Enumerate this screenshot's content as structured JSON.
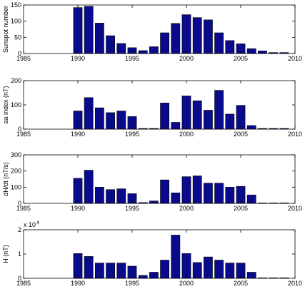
{
  "style": {
    "bar_color": "#0a0a8c",
    "bar_edge": "#000000",
    "axis_color": "#000000",
    "background": "#ffffff"
  },
  "chart_data": [
    {
      "type": "bar",
      "ylabel": "Sunspot number",
      "xlim": [
        1985,
        2010
      ],
      "ylim": [
        0,
        150
      ],
      "xticks": [
        1985,
        1990,
        1995,
        2000,
        2005,
        2010
      ],
      "yticks": [
        0,
        50,
        100,
        150
      ],
      "exponent": "",
      "categories": [
        1990,
        1991,
        1992,
        1993,
        1994,
        1995,
        1996,
        1997,
        1998,
        1999,
        2000,
        2001,
        2002,
        2003,
        2004,
        2005,
        2006,
        2007,
        2008,
        2009
      ],
      "values": [
        142,
        146,
        94,
        55,
        31,
        18,
        9,
        21,
        64,
        93,
        120,
        111,
        104,
        64,
        40,
        30,
        15,
        8,
        3,
        3
      ]
    },
    {
      "type": "bar",
      "ylabel": "aa index (nT)",
      "xlim": [
        1985,
        2010
      ],
      "ylim": [
        0,
        200
      ],
      "xticks": [
        1985,
        1990,
        1995,
        2000,
        2005,
        2010
      ],
      "yticks": [
        0,
        100,
        200
      ],
      "exponent": "",
      "categories": [
        1990,
        1991,
        1992,
        1993,
        1994,
        1995,
        1996,
        1997,
        1998,
        1999,
        2000,
        2001,
        2002,
        2003,
        2004,
        2005,
        2006,
        2007,
        2008,
        2009
      ],
      "values": [
        75,
        130,
        88,
        68,
        75,
        52,
        3,
        3,
        108,
        28,
        137,
        117,
        78,
        160,
        62,
        98,
        15,
        3,
        3,
        3
      ]
    },
    {
      "type": "bar",
      "ylabel": "dH/dt (nT/s)",
      "xlim": [
        1985,
        2010
      ],
      "ylim": [
        0,
        300
      ],
      "xticks": [
        1985,
        1990,
        1995,
        2000,
        2005,
        2010
      ],
      "yticks": [
        0,
        100,
        200,
        300
      ],
      "exponent": "",
      "categories": [
        1990,
        1991,
        1992,
        1993,
        1994,
        1995,
        1996,
        1997,
        1998,
        1999,
        2000,
        2001,
        2002,
        2003,
        2004,
        2005,
        2006,
        2007,
        2008,
        2009
      ],
      "values": [
        155,
        205,
        100,
        85,
        90,
        60,
        5,
        15,
        145,
        65,
        165,
        170,
        125,
        125,
        100,
        105,
        52,
        3,
        3,
        3
      ]
    },
    {
      "type": "bar",
      "ylabel": "H (nT)",
      "xlim": [
        1985,
        2010
      ],
      "ylim": [
        0,
        2
      ],
      "xticks": [
        1985,
        1990,
        1995,
        2000,
        2005,
        2010
      ],
      "yticks": [
        0,
        1,
        2
      ],
      "exponent": "x 10",
      "exponent_power": "4",
      "categories": [
        1990,
        1991,
        1992,
        1993,
        1994,
        1995,
        1996,
        1997,
        1998,
        1999,
        2000,
        2001,
        2002,
        2003,
        2004,
        2005,
        2006,
        2007,
        2008,
        2009
      ],
      "values": [
        1.02,
        0.9,
        0.63,
        0.63,
        0.63,
        0.5,
        0.12,
        0.25,
        0.75,
        1.78,
        1.02,
        0.65,
        0.88,
        0.75,
        0.63,
        0.63,
        0.25,
        0.02,
        0.02,
        0.02
      ]
    }
  ]
}
